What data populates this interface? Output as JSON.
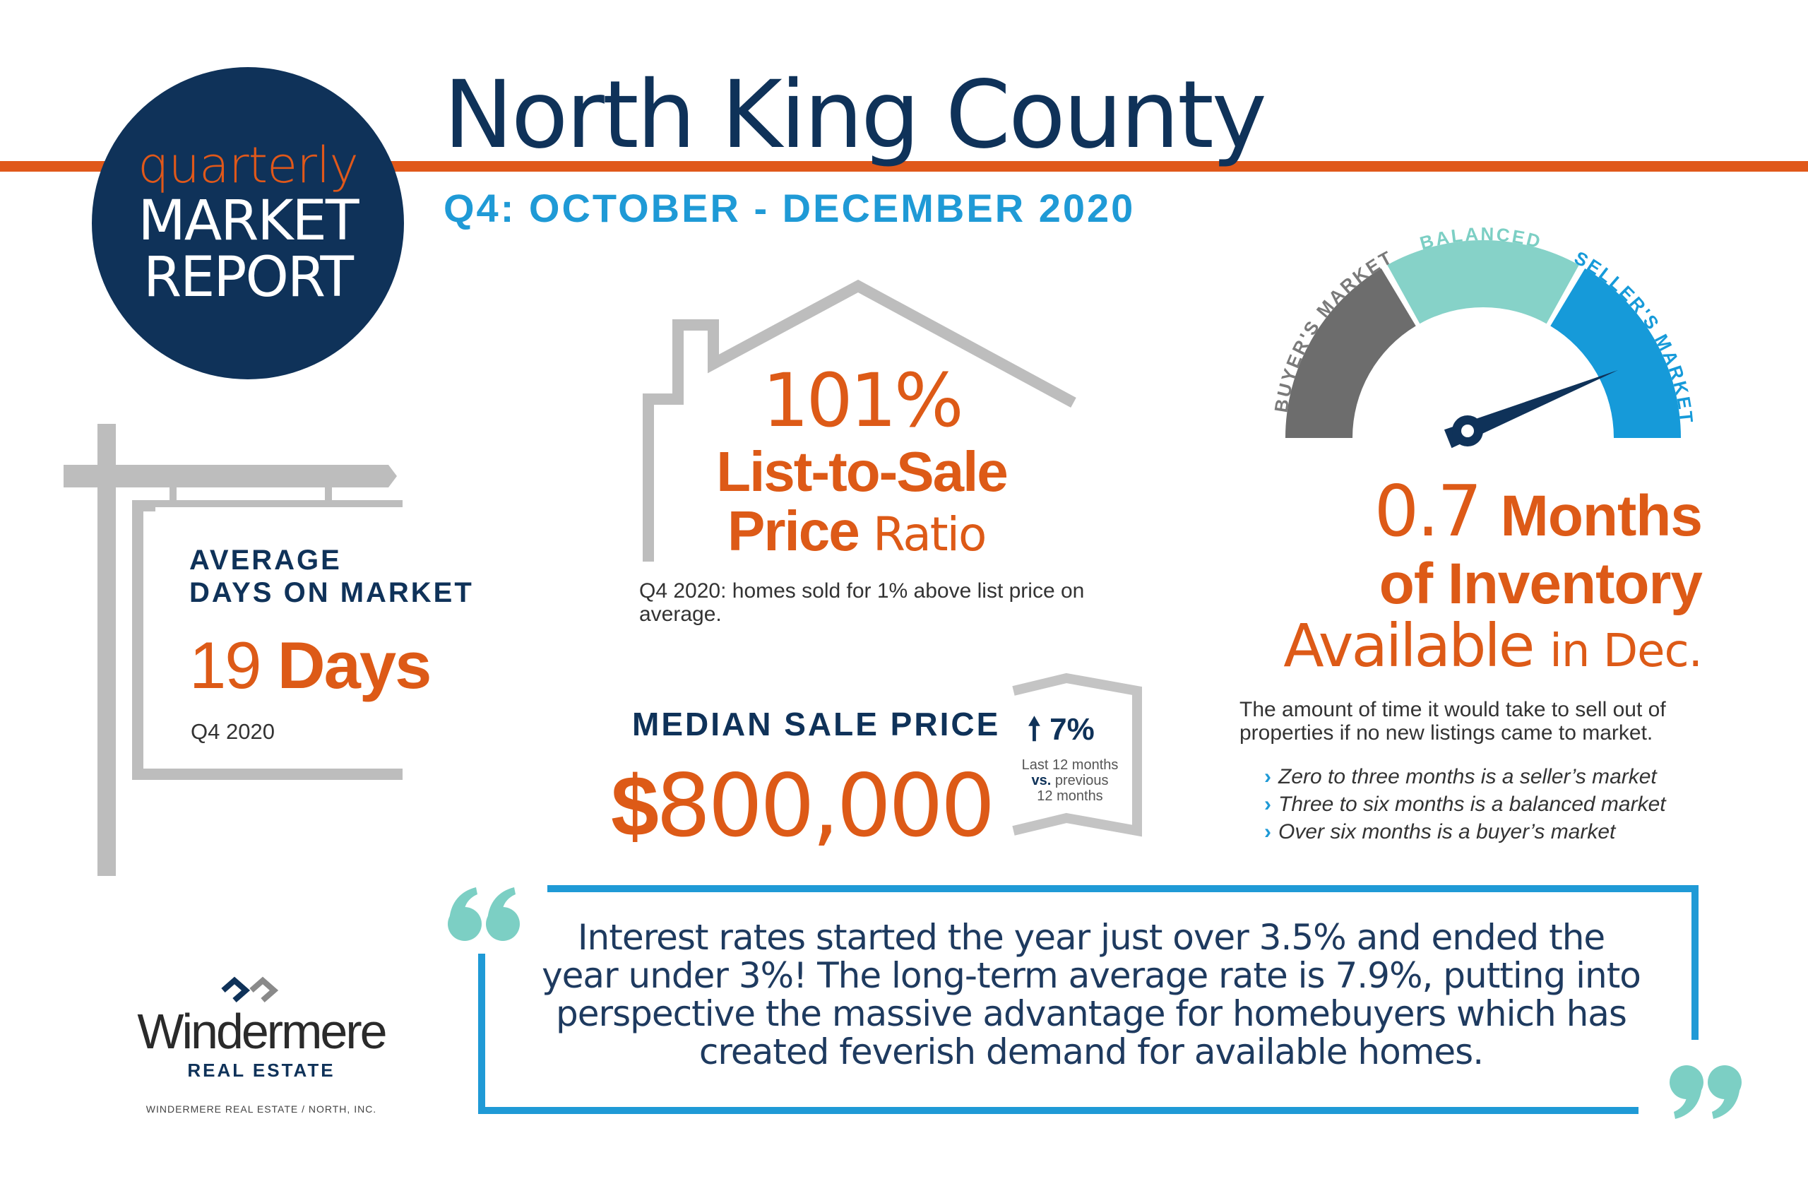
{
  "badge": {
    "line1": "quarterly",
    "line2": "MARKET",
    "line3": "REPORT"
  },
  "header": {
    "title": "North King County",
    "subtitle": "Q4: OCTOBER - DECEMBER 2020"
  },
  "days_on_market": {
    "label_line1": "AVERAGE",
    "label_line2": "DAYS ON MARKET",
    "value": "19",
    "unit": "Days",
    "period": "Q4 2020"
  },
  "list_to_sale": {
    "value": "101%",
    "label_line1": "List-to-Sale",
    "label_line2_bold": "Price",
    "label_line2_light": "Ratio",
    "note": "Q4 2020: homes sold for 1% above list price on average."
  },
  "median_sale_price": {
    "label": "MEDIAN SALE PRICE",
    "currency": "$",
    "value": "800,000",
    "change": "7%",
    "change_direction": "up",
    "change_note_line1": "Last 12 months",
    "change_note_line2": "vs.",
    "change_note_line2_rest": "previous",
    "change_note_line3": "12 months"
  },
  "gauge": {
    "labels": [
      "BUYER'S MARKET",
      "BALANCED",
      "SELLER'S MARKET"
    ],
    "colors": [
      "#6d6d6d",
      "#86d2c8",
      "#169ad9"
    ],
    "needle_value": 0.7
  },
  "inventory": {
    "value": "0.7",
    "unit_bold": "Months",
    "line2": "of Inventory",
    "line3_main": "Available",
    "line3_tail": "in Dec.",
    "description": "The amount of time it would take to sell out of properties if no new listings came to market.",
    "bullets": [
      "Zero to three months is a seller’s market",
      "Three to six months is a balanced market",
      "Over six months is a buyer’s market"
    ]
  },
  "quote": {
    "text": "Interest rates started the year just over 3.5% and ended the year under 3%! The long-term average rate is 7.9%, putting into perspective the massive advantage for homebuyers which has created feverish demand for available homes."
  },
  "logo": {
    "name": "Windermere",
    "subtitle": "REAL ESTATE",
    "footer": "WINDERMERE REAL ESTATE / NORTH, INC."
  },
  "colors": {
    "orange": "#dd5a17",
    "navy": "#0f3259",
    "blue": "#1f9ad6",
    "teal": "#7ccfc4",
    "gray": "#bdbdbd"
  }
}
